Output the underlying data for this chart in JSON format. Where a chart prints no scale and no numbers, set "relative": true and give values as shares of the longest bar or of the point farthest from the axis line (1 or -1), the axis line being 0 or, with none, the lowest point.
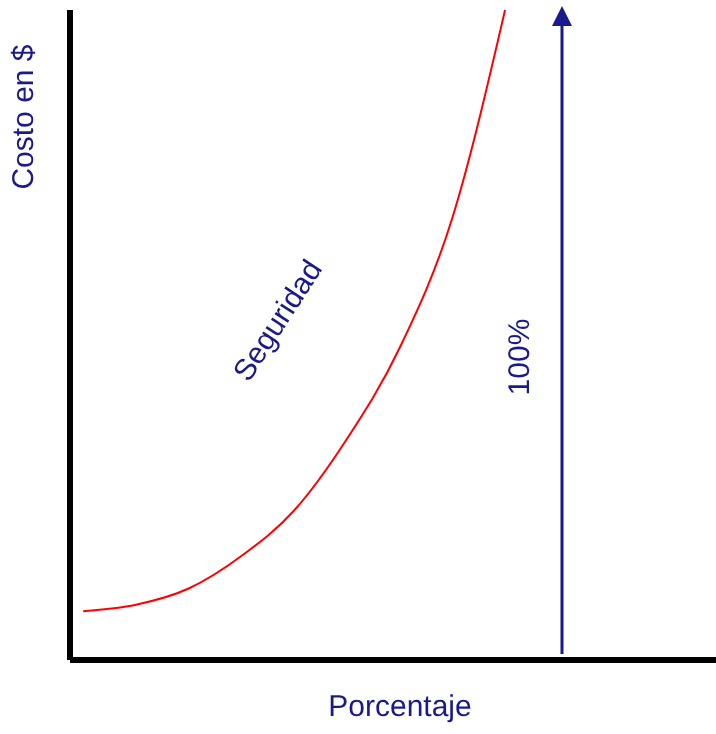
{
  "chart_data": {
    "type": "line",
    "relative": true,
    "xlabel": "Porcentaje",
    "ylabel": "Costo en $",
    "marker": "none",
    "categories": [
      null,
      null,
      null,
      null,
      null,
      null,
      null,
      null,
      null,
      null,
      null,
      null,
      null
    ],
    "series": [
      {
        "name": "Seguridad",
        "color": "#ff0000",
        "values": [
          0.075,
          0.085,
          0.11,
          0.16,
          0.23,
          0.34,
          0.48,
          0.68,
          1.0,
          null,
          null,
          null,
          null
        ]
      }
    ],
    "annotations": [
      "100%"
    ]
  }
}
